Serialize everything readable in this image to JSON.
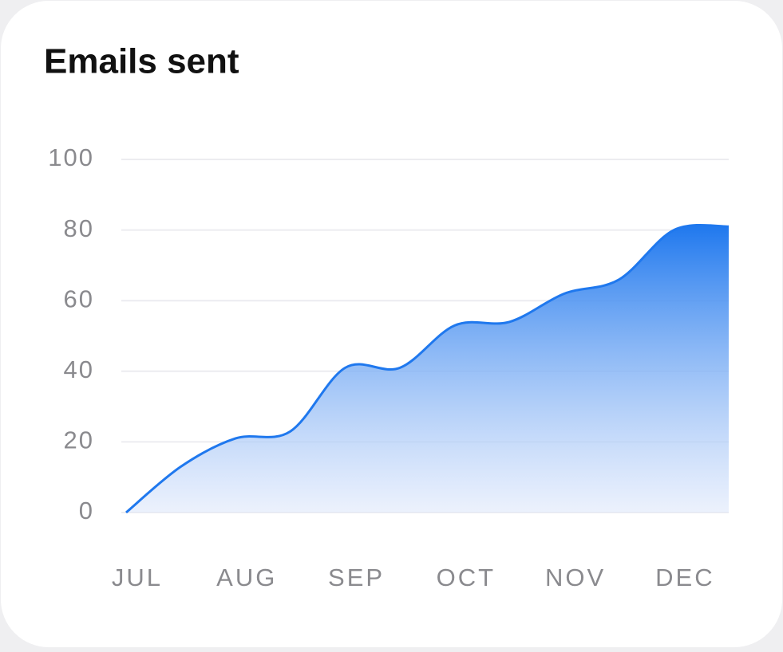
{
  "chart_data": {
    "type": "area",
    "title": "Emails sent",
    "categories": [
      "JUL",
      null,
      "AUG",
      null,
      "SEP",
      null,
      "OCT",
      null,
      "NOV",
      null,
      "DEC",
      null
    ],
    "values": [
      0,
      13,
      21,
      23,
      41,
      41,
      53,
      54,
      62,
      66,
      80,
      81
    ],
    "color": "#1f78ee",
    "ylim": [
      0,
      100
    ],
    "yticks": [
      0,
      20,
      40,
      60,
      80,
      100
    ],
    "grid": true
  }
}
